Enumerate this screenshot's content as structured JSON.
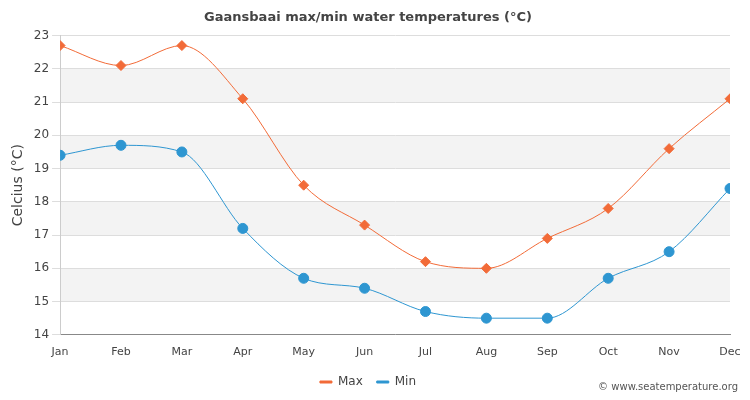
{
  "chart_data": {
    "type": "line",
    "title": "Gaansbaai max/min water temperatures (°C)",
    "ylabel": "Celcius (°C)",
    "categories": [
      "Jan",
      "Feb",
      "Mar",
      "Apr",
      "May",
      "Jun",
      "Jul",
      "Aug",
      "Sep",
      "Oct",
      "Nov",
      "Dec"
    ],
    "series": [
      {
        "name": "Max",
        "color": "#f26b38",
        "marker": "diamond",
        "line_style": "solid",
        "values": [
          22.7,
          22.1,
          22.7,
          21.1,
          18.5,
          17.3,
          16.2,
          16.0,
          16.9,
          17.8,
          19.6,
          21.1
        ]
      },
      {
        "name": "Min",
        "color": "#2e96d1",
        "marker": "circle",
        "line_style": "solid",
        "values": [
          19.4,
          19.7,
          19.5,
          17.2,
          15.7,
          15.4,
          14.7,
          14.5,
          14.5,
          15.7,
          16.5,
          18.4
        ]
      }
    ],
    "ylim": [
      14,
      23
    ],
    "yticks": [
      14,
      15,
      16,
      17,
      18,
      19,
      20,
      21,
      22,
      23
    ],
    "grid": true,
    "legend": "bottom",
    "annotations": [
      "© www.seatemperature.org"
    ]
  }
}
